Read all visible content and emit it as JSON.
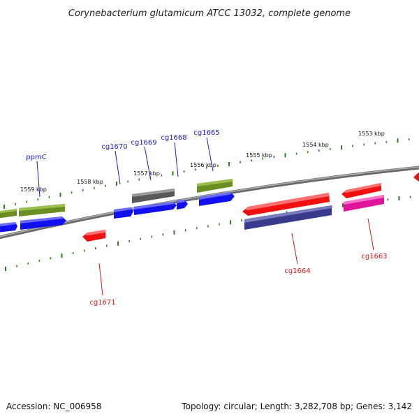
{
  "title": "Corynebacterium glutamicum ATCC 13032, complete genome",
  "accession": "Accession: NC_006958",
  "topology": "Topology: circular; Length: 3,282,708 bp; Genes: 3,142",
  "colors": {
    "backbone": "#808080",
    "tick": "#2e7d1e",
    "forward_label": "#1a1acc",
    "reverse_label": "#cc1a1a",
    "blue": "#1010f0",
    "green": "#6b8e23",
    "gray": "#606060",
    "red": "#f01010",
    "navy": "#3a3a8c",
    "magenta": "#e0149a"
  },
  "kbp_labels": [
    "1553 kbp",
    "1554 kbp",
    "1555 kbp",
    "1556 kbp",
    "1557 kbp",
    "1558 kbp",
    "1559 kbp"
  ],
  "gene_labels": {
    "forward": [
      "ppmC",
      "cg1670",
      "cg1669",
      "cg1668",
      "cg1665"
    ],
    "reverse": [
      "cg1671",
      "cg1664",
      "cg1663"
    ]
  },
  "features": [
    {
      "strand": "forward",
      "color": "green"
    },
    {
      "strand": "forward",
      "color": "green"
    },
    {
      "strand": "forward",
      "color": "blue"
    },
    {
      "strand": "forward",
      "color": "blue"
    },
    {
      "strand": "forward",
      "color": "blue"
    },
    {
      "strand": "forward",
      "color": "blue"
    },
    {
      "strand": "forward",
      "color": "blue"
    },
    {
      "strand": "forward",
      "color": "gray"
    },
    {
      "strand": "forward",
      "color": "green"
    },
    {
      "strand": "forward",
      "color": "blue"
    },
    {
      "strand": "reverse",
      "color": "red"
    },
    {
      "strand": "reverse",
      "color": "red"
    },
    {
      "strand": "reverse",
      "color": "navy"
    },
    {
      "strand": "reverse",
      "color": "red"
    },
    {
      "strand": "reverse",
      "color": "magenta"
    },
    {
      "strand": "reverse",
      "color": "red"
    }
  ]
}
